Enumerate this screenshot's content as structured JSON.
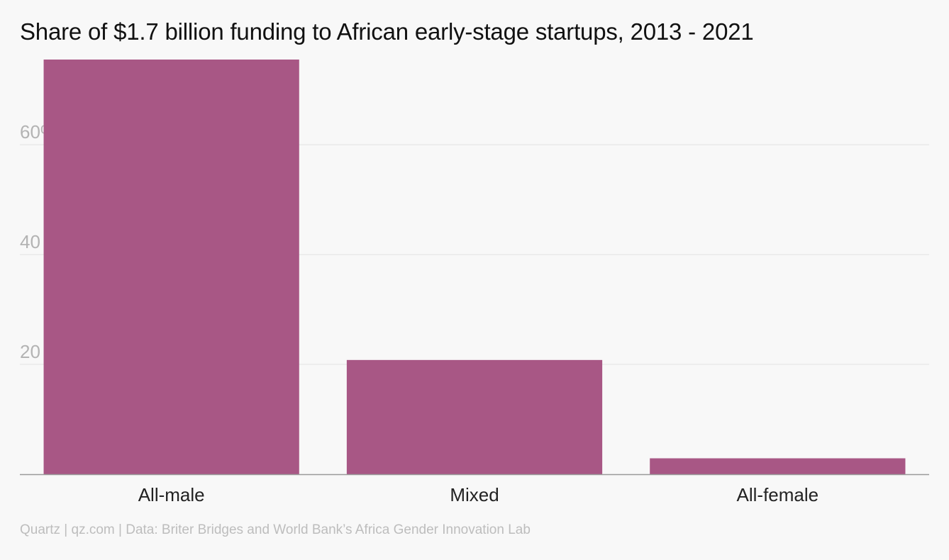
{
  "chart_data": {
    "type": "bar",
    "title": "Share of $1.7 billion funding to African early-stage startups, 2013 - 2021",
    "categories": [
      "All-male",
      "Mixed",
      "All-female"
    ],
    "values": [
      75.5,
      20.8,
      2.9
    ],
    "ylim": [
      0,
      75.5
    ],
    "yticks": [
      {
        "value": 20,
        "label": "20"
      },
      {
        "value": 40,
        "label": "40"
      },
      {
        "value": 60,
        "label": "60%"
      }
    ],
    "xlabel": "",
    "ylabel": "",
    "grid": true,
    "bar_color": "#a85785"
  },
  "footer": {
    "source": "Quartz | qz.com | Data: Briter Bridges and World Bank’s Africa Gender Innovation Lab"
  }
}
